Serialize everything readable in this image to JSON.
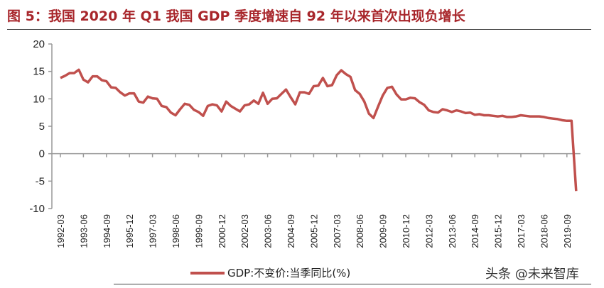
{
  "title": "图 5：我国 2020 年 Q1 我国 GDP 季度增速自 92 年以来首次出现负增长",
  "watermark": "头条 @未来智库",
  "colors": {
    "title": "#a8262b",
    "series": "#c0504d",
    "axis": "#999999"
  },
  "chart_data": {
    "type": "line",
    "title": "图 5：我国 2020 年 Q1 我国 GDP 季度增速自 92 年以来首次出现负增长",
    "frequency": "quarterly",
    "x_start": "1992-03",
    "x_end": "2020-03",
    "tick_labels": [
      "1992-03",
      "1993-06",
      "1994-09",
      "1995-12",
      "1997-03",
      "1998-06",
      "1999-09",
      "2000-12",
      "2002-03",
      "2003-06",
      "2004-09",
      "2005-12",
      "2007-03",
      "2008-06",
      "2009-09",
      "2010-12",
      "2012-03",
      "2013-06",
      "2014-09",
      "2015-12",
      "2017-03",
      "2018-06",
      "2019-09"
    ],
    "ylim": [
      -10,
      20
    ],
    "yticks": [
      20,
      15,
      10,
      5,
      0,
      -5,
      -10
    ],
    "grid": false,
    "legend": "bottom",
    "series": [
      {
        "name": "GDP:不变价:当季同比(%)",
        "color": "#c0504d",
        "values": [
          13.8,
          14.2,
          14.7,
          14.7,
          15.3,
          13.5,
          13.0,
          14.1,
          14.1,
          13.4,
          13.2,
          12.1,
          12.0,
          11.2,
          10.6,
          11.0,
          11.0,
          9.5,
          9.3,
          10.4,
          10.1,
          10.0,
          8.7,
          8.5,
          7.5,
          7.0,
          8.1,
          9.1,
          8.9,
          8.0,
          7.6,
          6.9,
          8.7,
          9.0,
          8.8,
          7.7,
          9.5,
          8.7,
          8.2,
          7.7,
          8.8,
          9.0,
          9.7,
          9.1,
          11.1,
          9.1,
          10.0,
          10.1,
          10.9,
          11.7,
          10.3,
          9.0,
          11.2,
          11.2,
          10.9,
          12.3,
          12.4,
          13.8,
          12.3,
          12.5,
          14.3,
          15.2,
          14.5,
          14.0,
          11.6,
          10.9,
          9.5,
          7.3,
          6.5,
          8.6,
          10.6,
          12.0,
          12.2,
          10.8,
          9.9,
          9.9,
          10.2,
          10.1,
          9.4,
          8.9,
          7.9,
          7.6,
          7.5,
          8.1,
          7.9,
          7.6,
          7.9,
          7.7,
          7.4,
          7.5,
          7.1,
          7.2,
          7.0,
          7.0,
          6.9,
          6.8,
          6.9,
          6.7,
          6.7,
          6.8,
          7.0,
          6.9,
          6.8,
          6.8,
          6.8,
          6.7,
          6.5,
          6.4,
          6.3,
          6.1,
          6.0,
          6.0,
          -6.8
        ]
      }
    ]
  }
}
